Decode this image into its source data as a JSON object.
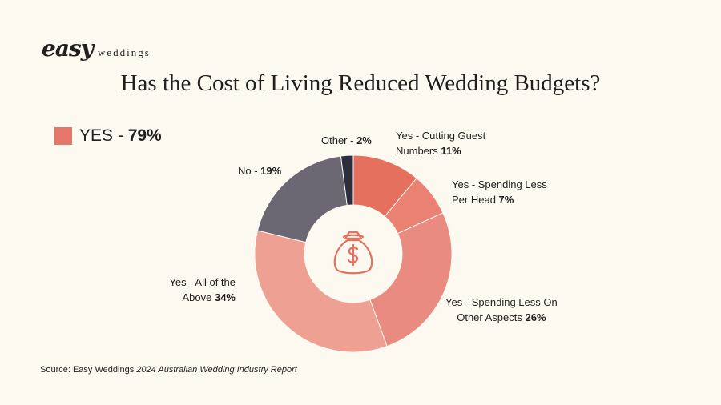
{
  "logo": {
    "script": "easy",
    "sub": "weddings"
  },
  "title": "Has the Cost of Living Reduced Wedding Budgets?",
  "summary": {
    "label": "YES - ",
    "value": "79%",
    "color": "#e5776a"
  },
  "chart_data": {
    "type": "pie",
    "donut": true,
    "center_icon": "money-bag-icon",
    "slices": [
      {
        "label": "Yes - Cutting Guest Numbers",
        "value": 11,
        "value_text": "11%",
        "color": "#e5705e"
      },
      {
        "label": "Yes - Spending Less Per Head",
        "value": 7,
        "value_text": "7%",
        "color": "#ea8172"
      },
      {
        "label": "Yes - Spending Less On Other Aspects",
        "value": 26,
        "value_text": "26%",
        "color": "#e98b80"
      },
      {
        "label": "Yes - All of the Above",
        "value": 34,
        "value_text": "34%",
        "color": "#eea092"
      },
      {
        "label": "No",
        "value": 19,
        "value_text": "19%",
        "color": "#6b6873"
      },
      {
        "label": "Other",
        "value": 2,
        "value_text": "2%",
        "color": "#2c2e3e"
      }
    ]
  },
  "labels": {
    "cutting_guest": {
      "line1": "Yes - Cutting Guest",
      "line2": "Numbers ",
      "value": "11%"
    },
    "per_head": {
      "line1": "Yes - Spending Less",
      "line2": "Per Head ",
      "value": "7%"
    },
    "other_aspects": {
      "line1": "Yes - Spending Less On",
      "line2": "Other Aspects ",
      "value": "26%"
    },
    "all_above": {
      "line1": "Yes - All of the",
      "line2": "Above ",
      "value": "34%"
    },
    "no": {
      "text": "No - ",
      "value": "19%"
    },
    "other": {
      "text": "Other - ",
      "value": "2%"
    }
  },
  "source": {
    "prefix": "Source: Easy Weddings ",
    "report": "2024 Australian Wedding Industry Report"
  }
}
